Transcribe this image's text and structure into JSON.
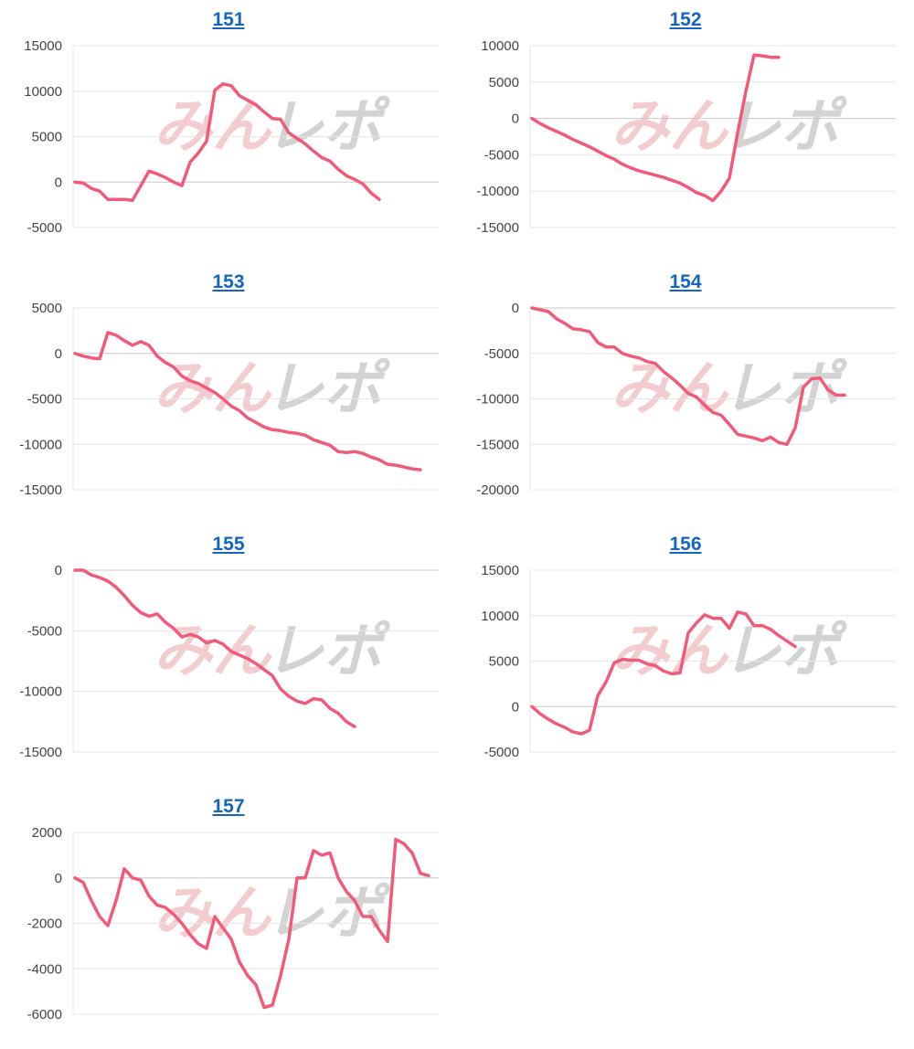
{
  "watermark": {
    "part1": "みん",
    "part2": "レポ"
  },
  "colors": {
    "line": "#f25a7a",
    "grid": "#e6e6e6",
    "zero": "#c8c8c8",
    "title": "#1565c0"
  },
  "chart_data": [
    {
      "type": "line",
      "title": "151",
      "yticks": [
        15000,
        10000,
        5000,
        0,
        -5000
      ],
      "ylim": [
        -5000,
        15000
      ],
      "values": [
        0,
        -100,
        -700,
        -1000,
        -1900,
        -1900,
        -1900,
        -2000,
        -400,
        1200,
        900,
        500,
        0,
        -400,
        2200,
        3200,
        4500,
        10100,
        10800,
        10600,
        9500,
        9000,
        8500,
        7700,
        7000,
        6900,
        5400,
        4800,
        4200,
        3400,
        2700,
        2300,
        1400,
        700,
        300,
        -200,
        -1200,
        -1900
      ]
    },
    {
      "type": "line",
      "title": "152",
      "yticks": [
        10000,
        5000,
        0,
        -5000,
        -10000,
        -15000
      ],
      "ylim": [
        -15000,
        10000
      ],
      "values": [
        0,
        -700,
        -1300,
        -1800,
        -2300,
        -2900,
        -3400,
        -3900,
        -4500,
        -5100,
        -5600,
        -6300,
        -6800,
        -7200,
        -7500,
        -7800,
        -8100,
        -8500,
        -8900,
        -9500,
        -10200,
        -10600,
        -11300,
        -10000,
        -8200,
        -2000,
        3700,
        8700,
        8600,
        8400,
        8400
      ]
    },
    {
      "type": "line",
      "title": "153",
      "yticks": [
        5000,
        0,
        -5000,
        -10000,
        -15000
      ],
      "ylim": [
        -15000,
        5000
      ],
      "values": [
        0,
        -300,
        -500,
        -600,
        2300,
        2000,
        1400,
        900,
        1300,
        900,
        -300,
        -1000,
        -1500,
        -2500,
        -3000,
        -3300,
        -3800,
        -4300,
        -5000,
        -5800,
        -6300,
        -7100,
        -7600,
        -8100,
        -8400,
        -8500,
        -8700,
        -8800,
        -9000,
        -9500,
        -9800,
        -10100,
        -10800,
        -10900,
        -10800,
        -11000,
        -11400,
        -11700,
        -12200,
        -12300,
        -12500,
        -12700,
        -12800
      ]
    },
    {
      "type": "line",
      "title": "154",
      "yticks": [
        0,
        -5000,
        -10000,
        -15000,
        -20000
      ],
      "ylim": [
        -20000,
        0
      ],
      "values": [
        0,
        -200,
        -400,
        -1200,
        -1700,
        -2300,
        -2400,
        -2600,
        -3800,
        -4300,
        -4300,
        -5000,
        -5300,
        -5500,
        -5900,
        -6100,
        -7000,
        -7700,
        -8500,
        -9400,
        -9800,
        -10700,
        -11500,
        -11800,
        -12800,
        -13900,
        -14100,
        -14300,
        -14600,
        -14200,
        -14800,
        -15000,
        -13200,
        -8700,
        -7800,
        -7700,
        -9000,
        -9600,
        -9600
      ]
    },
    {
      "type": "line",
      "title": "155",
      "yticks": [
        0,
        -5000,
        -10000,
        -15000
      ],
      "ylim": [
        -15000,
        0
      ],
      "values": [
        0,
        0,
        -400,
        -600,
        -900,
        -1400,
        -2100,
        -2900,
        -3500,
        -3800,
        -3600,
        -4300,
        -4800,
        -5500,
        -5300,
        -5500,
        -6000,
        -5800,
        -6100,
        -6700,
        -7000,
        -7300,
        -7700,
        -8200,
        -8700,
        -9800,
        -10400,
        -10800,
        -11000,
        -10600,
        -10700,
        -11400,
        -11800,
        -12500,
        -12900
      ]
    },
    {
      "type": "line",
      "title": "156",
      "yticks": [
        15000,
        10000,
        5000,
        0,
        -5000
      ],
      "ylim": [
        -5000,
        15000
      ],
      "values": [
        0,
        -800,
        -1400,
        -1900,
        -2300,
        -2800,
        -3000,
        -2600,
        1200,
        2700,
        4800,
        5200,
        5100,
        5100,
        4700,
        4500,
        3900,
        3600,
        3700,
        8100,
        9200,
        10100,
        9700,
        9700,
        8600,
        10400,
        10200,
        8900,
        8900,
        8500,
        7800,
        7200,
        6600
      ]
    },
    {
      "type": "line",
      "title": "157",
      "yticks": [
        2000,
        0,
        -2000,
        -4000,
        -6000
      ],
      "ylim": [
        -6000,
        2000
      ],
      "values": [
        0,
        -200,
        -1000,
        -1700,
        -2100,
        -1000,
        400,
        0,
        -100,
        -800,
        -1200,
        -1300,
        -1600,
        -2000,
        -2500,
        -2900,
        -3100,
        -1700,
        -2200,
        -2700,
        -3700,
        -4300,
        -4700,
        -5700,
        -5600,
        -4300,
        -2700,
        0,
        0,
        1200,
        1000,
        1100,
        0,
        -600,
        -1000,
        -1700,
        -1700,
        -2300,
        -2800,
        1700,
        1500,
        1100,
        200,
        100
      ]
    }
  ]
}
